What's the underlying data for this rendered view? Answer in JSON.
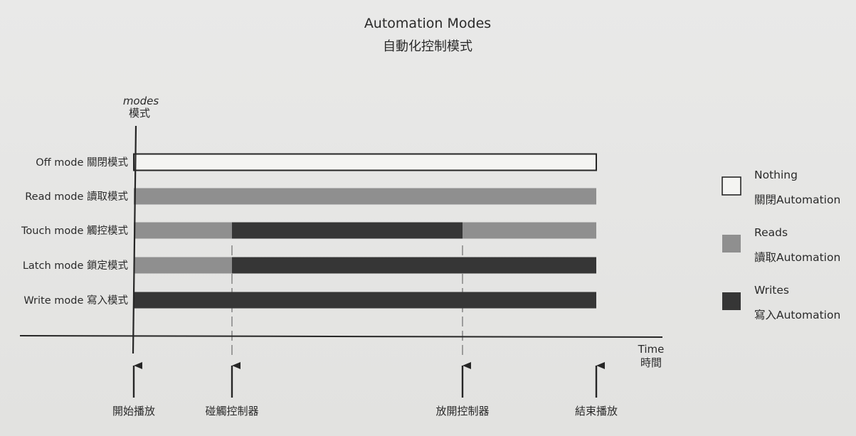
{
  "title": "Automation Modes",
  "subtitle": "自動化控制模式",
  "y_axis": {
    "label_en": "modes",
    "label_zh": "模式"
  },
  "x_axis": {
    "label_en": "Time",
    "label_zh": "時間"
  },
  "colors": {
    "nothing": "#f4f4f2",
    "reads": "#8f8f8f",
    "writes": "#363636",
    "stroke": "#262626"
  },
  "modes": [
    {
      "label": "Off mode 關閉模式",
      "segments": [
        {
          "start": 0,
          "end": 4,
          "state": "nothing"
        }
      ]
    },
    {
      "label": "Read mode 讀取模式",
      "segments": [
        {
          "start": 0,
          "end": 4,
          "state": "reads"
        }
      ]
    },
    {
      "label": "Touch mode 觸控模式",
      "segments": [
        {
          "start": 0,
          "end": 1,
          "state": "reads"
        },
        {
          "start": 1,
          "end": 2,
          "state": "writes"
        },
        {
          "start": 2,
          "end": 4,
          "state": "reads"
        }
      ]
    },
    {
      "label": "Latch mode 鎖定模式",
      "segments": [
        {
          "start": 0,
          "end": 1,
          "state": "reads"
        },
        {
          "start": 1,
          "end": 4,
          "state": "writes"
        }
      ]
    },
    {
      "label": "Write mode 寫入模式",
      "segments": [
        {
          "start": 0,
          "end": 4,
          "state": "writes"
        }
      ]
    }
  ],
  "events": [
    {
      "label": "開始播放",
      "dashed": false
    },
    {
      "label": "碰觸控制器",
      "dashed": true
    },
    {
      "label": "放開控制器",
      "dashed": true
    },
    {
      "label": "結束播放",
      "dashed": false
    }
  ],
  "legend": [
    {
      "state": "nothing",
      "label_en": "Nothing",
      "label_zh": "關閉Automation"
    },
    {
      "state": "reads",
      "label_en": "Reads",
      "label_zh": "讀取Automation"
    },
    {
      "state": "writes",
      "label_en": "Writes",
      "label_zh": "寫入Automation"
    }
  ]
}
